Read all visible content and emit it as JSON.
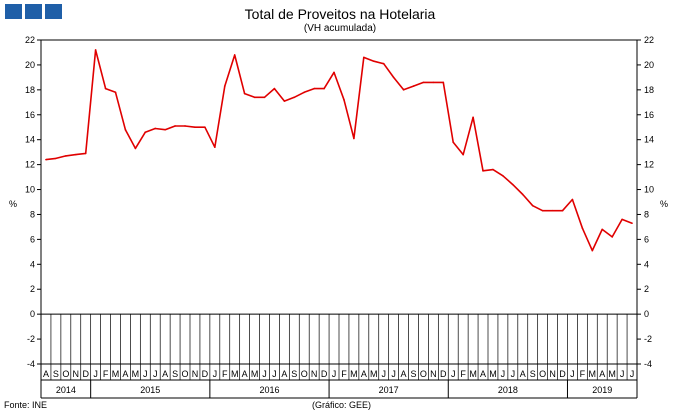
{
  "header": {
    "title": "Total de Proveitos na Hotelaria",
    "subtitle": "(VH acumulada)"
  },
  "footer": {
    "source": "Fonte: INE",
    "credit": "(Gráfico: GEE)"
  },
  "chart_data": {
    "type": "line",
    "title": "Total de Proveitos na Hotelaria",
    "subtitle": "(VH acumulada)",
    "ylabel_left": "%",
    "ylabel_right": "%",
    "ylim": [
      -4,
      22
    ],
    "yticks": [
      -4,
      -2,
      0,
      2,
      4,
      6,
      8,
      10,
      12,
      14,
      16,
      18,
      20,
      22
    ],
    "grid": false,
    "line_color": "#e00000",
    "month_labels": [
      "A",
      "S",
      "O",
      "N",
      "D",
      "J",
      "F",
      "M",
      "A",
      "M",
      "J",
      "J",
      "A",
      "S",
      "O",
      "N",
      "D",
      "J",
      "F",
      "M",
      "A",
      "M",
      "J",
      "J",
      "A",
      "S",
      "O",
      "N",
      "D",
      "J",
      "F",
      "M",
      "A",
      "M",
      "J",
      "J",
      "A",
      "S",
      "O",
      "N",
      "D",
      "J",
      "F",
      "M",
      "A",
      "M",
      "J",
      "J",
      "A",
      "S",
      "O",
      "N",
      "D",
      "J",
      "F",
      "M",
      "A",
      "M",
      "J",
      "J"
    ],
    "years": [
      {
        "label": "2014",
        "start": 0,
        "end": 4
      },
      {
        "label": "2015",
        "start": 5,
        "end": 16
      },
      {
        "label": "2016",
        "start": 17,
        "end": 28
      },
      {
        "label": "2017",
        "start": 29,
        "end": 40
      },
      {
        "label": "2018",
        "start": 41,
        "end": 52
      },
      {
        "label": "2019",
        "start": 53,
        "end": 59
      }
    ],
    "series": [
      {
        "values": [
          12.4,
          12.5,
          12.7,
          12.8,
          12.9,
          21.2,
          18.1,
          17.8,
          14.8,
          13.3,
          14.6,
          14.9,
          14.8,
          15.1,
          15.1,
          15.0,
          15.0,
          13.4,
          18.3,
          20.8,
          17.7,
          17.4,
          17.4,
          18.1,
          17.1,
          17.4,
          17.8,
          18.1,
          18.1,
          19.4,
          17.2,
          14.1,
          20.6,
          20.3,
          20.1,
          19.0,
          18.0,
          18.3,
          18.6,
          18.6,
          18.6,
          13.8,
          12.8,
          15.8,
          11.5,
          11.6,
          11.1,
          10.4,
          9.6,
          8.7,
          8.3,
          8.3,
          8.3,
          9.2,
          6.9,
          5.1,
          6.8,
          6.2,
          7.6,
          7.3
        ]
      }
    ]
  }
}
